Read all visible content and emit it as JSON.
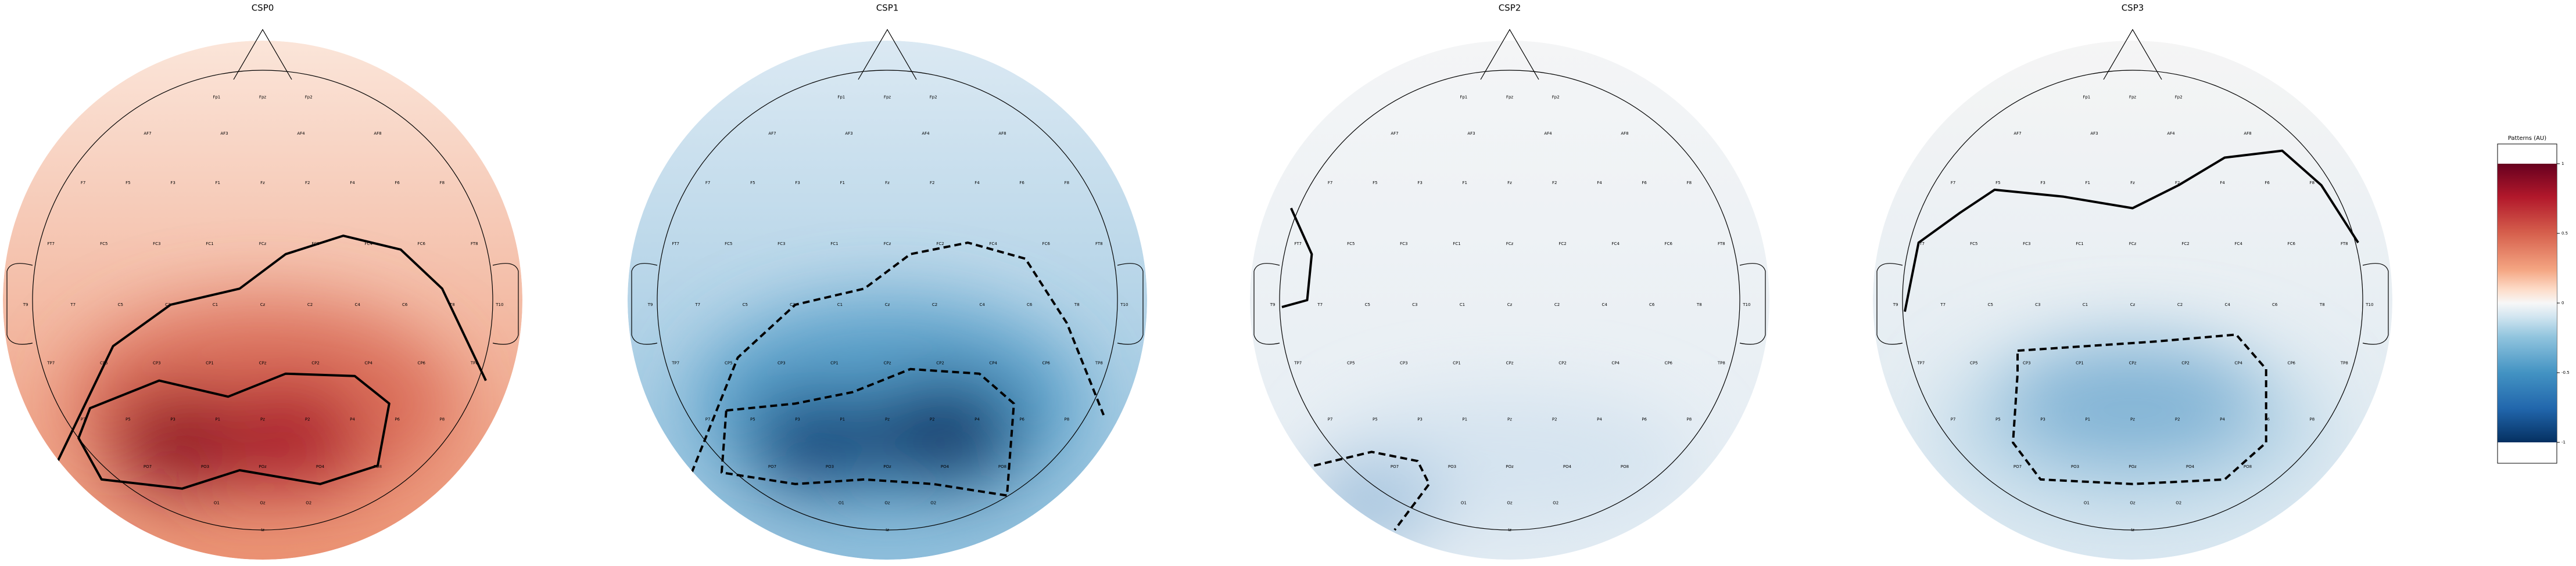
{
  "chart_data": {
    "type": "topomap",
    "maps": [
      {
        "title": "CSP0"
      },
      {
        "title": "CSP1"
      },
      {
        "title": "CSP2"
      },
      {
        "title": "CSP3"
      }
    ],
    "channels": [
      "Fp1",
      "Fpz",
      "Fp2",
      "AF7",
      "AF3",
      "AF4",
      "AF8",
      "F7",
      "F5",
      "F3",
      "F1",
      "Fz",
      "F2",
      "F4",
      "F6",
      "F8",
      "FT7",
      "FC5",
      "FC3",
      "FC1",
      "FCz",
      "FC2",
      "FC4",
      "FC6",
      "FT8",
      "T9",
      "T7",
      "C5",
      "C3",
      "C1",
      "Cz",
      "C2",
      "C4",
      "C6",
      "T8",
      "T10",
      "TP7",
      "CP5",
      "CP3",
      "CP1",
      "CPz",
      "CP2",
      "CP4",
      "CP6",
      "TP8",
      "P7",
      "P5",
      "P3",
      "P1",
      "Pz",
      "P2",
      "P4",
      "P6",
      "P8",
      "PO7",
      "PO3",
      "POz",
      "PO4",
      "PO8",
      "O1",
      "Oz",
      "O2",
      "Iz"
    ],
    "colorbar": {
      "title": "Patterns (AU)",
      "ylim": [
        -1,
        1
      ],
      "yticks": [
        -1,
        -0.5,
        0,
        0.5,
        1
      ]
    }
  }
}
